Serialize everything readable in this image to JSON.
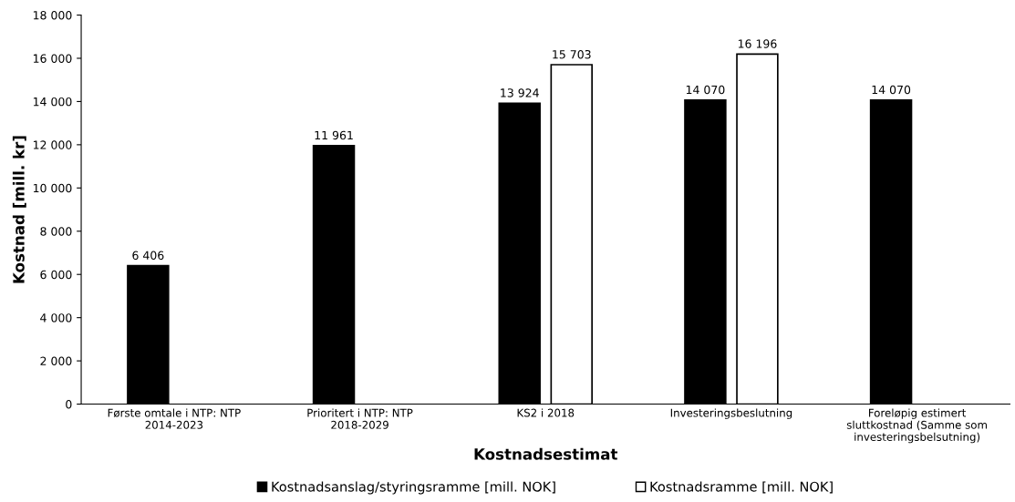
{
  "chart_data": {
    "type": "bar",
    "xlabel": "Kostnadsestimat",
    "ylabel": "Kostnad [mill. kr]",
    "categories": [
      "Første omtale i NTP: NTP 2014-2023",
      "Prioritert i NTP: NTP 2018-2029",
      "KS2 i 2018",
      "Investeringsbeslutning",
      "Foreløpig estimert sluttkostnad (Samme som investeringsbelsutning)"
    ],
    "series": [
      {
        "name": "Kostnadsanslag/styringsramme [mill. NOK]",
        "color": "#000000",
        "values": [
          6406,
          11961,
          13924,
          14070,
          14070
        ],
        "value_labels": [
          "6 406",
          "11 961",
          "13 924",
          "14 070",
          "14 070"
        ]
      },
      {
        "name": "Kostnadsramme [mill. NOK]",
        "color": "#ffffff",
        "values": [
          null,
          null,
          15703,
          16196,
          null
        ],
        "value_labels": [
          null,
          null,
          "15 703",
          "16 196",
          null
        ]
      }
    ],
    "ylim": [
      0,
      18000
    ],
    "yticks": [
      0,
      {
        "value": 2000,
        "label": "2 000"
      },
      {
        "value": 4000,
        "label": "4 000"
      },
      {
        "value": 6000,
        "label": "6 000"
      },
      {
        "value": 8000,
        "label": "8 000"
      },
      {
        "value": 10000,
        "label": "10 000"
      },
      {
        "value": 12000,
        "label": "12 000"
      },
      {
        "value": 14000,
        "label": "14 000"
      },
      {
        "value": 16000,
        "label": "16 000"
      },
      {
        "value": 18000,
        "label": "18 000"
      }
    ],
    "grid": false,
    "legend": "bottom"
  }
}
